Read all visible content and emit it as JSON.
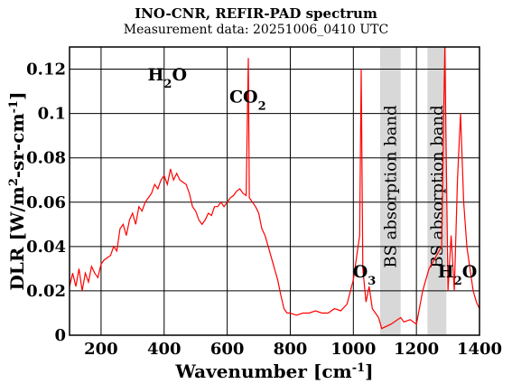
{
  "chart_data": {
    "type": "line",
    "title": "INO-CNR, REFIR-PAD spectrum",
    "subtitle": "Measurement data: 20251006_0410 UTC",
    "xlabel": "Wavenumber [cm-1]",
    "ylabel": "DLR [W/m2-sr-cm-1]",
    "xlim": [
      100,
      1400
    ],
    "ylim": [
      0,
      0.13
    ],
    "x_ticks": [
      200,
      400,
      600,
      800,
      1000,
      1200,
      1400
    ],
    "y_ticks": [
      0,
      0.02,
      0.04,
      0.06,
      0.08,
      0.1,
      0.12
    ],
    "grid": true,
    "line_color": "#ff0000",
    "band_color": "#d8d8d8",
    "series": [
      {
        "x": [
          100,
          110,
          120,
          130,
          140,
          150,
          160,
          170,
          180,
          190,
          200,
          210,
          220,
          230,
          240,
          250,
          260,
          270,
          280,
          290,
          300,
          310,
          320,
          330,
          340,
          350,
          360,
          370,
          380,
          390,
          400,
          410,
          420,
          430,
          440,
          450,
          460,
          470,
          480,
          490,
          500,
          510,
          520,
          530,
          540,
          550,
          560,
          570,
          580,
          590,
          600,
          610,
          620,
          630,
          640,
          650,
          660,
          667,
          670,
          680,
          690,
          700,
          710,
          720,
          730,
          740,
          750,
          760,
          770,
          780,
          790,
          800,
          820,
          840,
          860,
          880,
          900,
          920,
          940,
          960,
          980,
          1000,
          1010,
          1020,
          1025,
          1030,
          1040,
          1050,
          1060,
          1070,
          1080,
          1090,
          1120,
          1150,
          1160,
          1180,
          1200,
          1220,
          1240,
          1280,
          1290,
          1300,
          1310,
          1320,
          1330,
          1340,
          1350,
          1360,
          1370,
          1380,
          1390,
          1400
        ],
        "y": [
          0.022,
          0.028,
          0.022,
          0.03,
          0.02,
          0.028,
          0.024,
          0.031,
          0.028,
          0.026,
          0.032,
          0.034,
          0.035,
          0.036,
          0.04,
          0.038,
          0.048,
          0.05,
          0.045,
          0.052,
          0.055,
          0.05,
          0.058,
          0.056,
          0.06,
          0.062,
          0.064,
          0.068,
          0.066,
          0.07,
          0.072,
          0.068,
          0.075,
          0.07,
          0.073,
          0.07,
          0.069,
          0.068,
          0.064,
          0.058,
          0.056,
          0.052,
          0.05,
          0.052,
          0.055,
          0.054,
          0.058,
          0.058,
          0.06,
          0.058,
          0.06,
          0.062,
          0.063,
          0.065,
          0.066,
          0.064,
          0.063,
          0.125,
          0.062,
          0.06,
          0.058,
          0.055,
          0.048,
          0.045,
          0.04,
          0.035,
          0.03,
          0.025,
          0.018,
          0.012,
          0.01,
          0.01,
          0.009,
          0.01,
          0.01,
          0.011,
          0.01,
          0.01,
          0.012,
          0.011,
          0.014,
          0.025,
          0.035,
          0.045,
          0.12,
          0.03,
          0.015,
          0.022,
          0.012,
          0.01,
          0.008,
          0.003,
          0.005,
          0.008,
          0.006,
          0.007,
          0.005,
          0.02,
          0.03,
          0.04,
          0.13,
          0.02,
          0.045,
          0.02,
          0.07,
          0.1,
          0.06,
          0.04,
          0.03,
          0.02,
          0.015,
          0.012
        ]
      }
    ],
    "shaded_bands": [
      {
        "label": "BS absorption band",
        "x": [
          1085,
          1150
        ]
      },
      {
        "label": "BS absorption band",
        "x": [
          1235,
          1295
        ]
      }
    ],
    "annotations": [
      {
        "main": "H",
        "sub": "2",
        "tail": "O",
        "x": 410,
        "y": 0.115
      },
      {
        "main": "CO",
        "sub": "2",
        "tail": "",
        "x": 665,
        "y": 0.105
      },
      {
        "main": "O",
        "sub": "3",
        "tail": "",
        "x": 1035,
        "y": 0.026
      },
      {
        "main": "H",
        "sub": "2",
        "tail": "O",
        "x": 1330,
        "y": 0.026
      }
    ]
  }
}
